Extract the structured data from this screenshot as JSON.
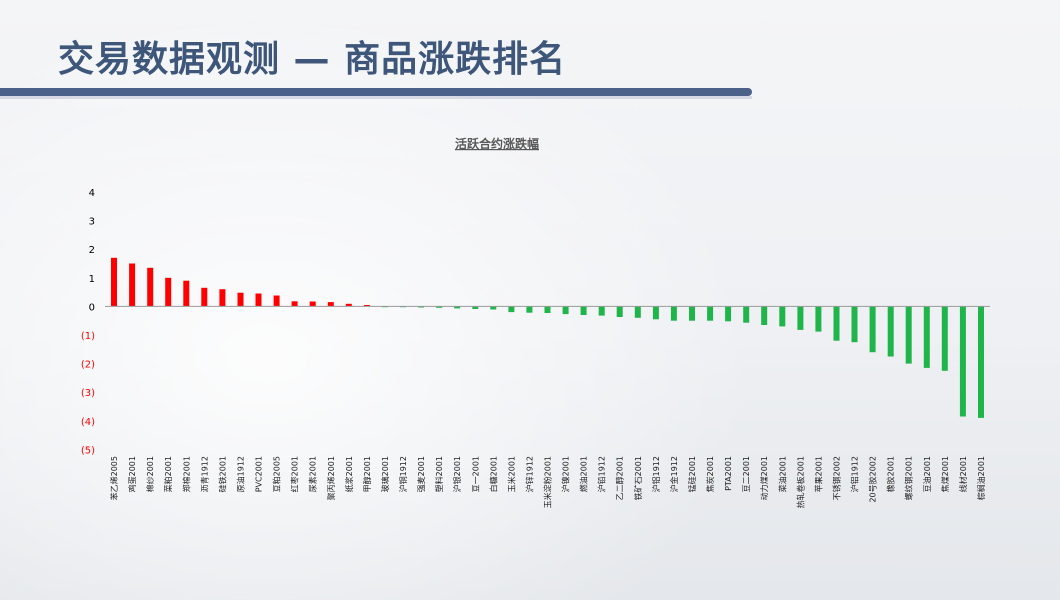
{
  "page": {
    "title": "交易数据观测 — 商品涨跌排名"
  },
  "colors": {
    "title": "#3e5679",
    "title_bar": "#4b6189",
    "positive_bar": "#ff0000",
    "negative_bar": "#1fb54b",
    "negative_tick_label": "#ff0000",
    "positive_tick_label": "#000000"
  },
  "chart_data": {
    "type": "bar",
    "title": "活跃合约涨跌幅",
    "xlabel": "",
    "ylabel": "",
    "ylim": [
      -5,
      4
    ],
    "yticks": [
      {
        "value": 4,
        "label": "4"
      },
      {
        "value": 3,
        "label": "3"
      },
      {
        "value": 2,
        "label": "2"
      },
      {
        "value": 1,
        "label": "1"
      },
      {
        "value": 0,
        "label": "0"
      },
      {
        "value": -1,
        "label": "(1)"
      },
      {
        "value": -2,
        "label": "(2)"
      },
      {
        "value": -3,
        "label": "(3)"
      },
      {
        "value": -4,
        "label": "(4)"
      },
      {
        "value": -5,
        "label": "(5)"
      }
    ],
    "grid": false,
    "legend": "none",
    "categories": [
      "苯乙烯2005",
      "鸡蛋2001",
      "棉纱2001",
      "菜粕2001",
      "郑棉2001",
      "沥青1912",
      "硅铁2001",
      "原油1912",
      "PVC2001",
      "豆粕2005",
      "红枣2001",
      "尿素2001",
      "聚丙烯2001",
      "纸浆2001",
      "甲醇2001",
      "玻璃2001",
      "沪铜1912",
      "强麦2001",
      "塑料2001",
      "沪银2001",
      "豆一2001",
      "白糖2001",
      "玉米2001",
      "沪锌1912",
      "玉米淀粉2001",
      "沪镍2001",
      "燃油2001",
      "沪铅1912",
      "乙二醇2001",
      "铁矿石2001",
      "沪铝1912",
      "沪金1912",
      "锰硅2001",
      "焦炭2001",
      "PTA2001",
      "豆二2001",
      "动力煤2001",
      "菜油2001",
      "热轧卷板2001",
      "苹果2001",
      "不锈钢2002",
      "沪铝1912",
      "20号胶2002",
      "橡胶2001",
      "螺纹钢2001",
      "豆油2001",
      "焦煤2001",
      "线材2001",
      "棕榈油2001"
    ],
    "values": [
      1.7,
      1.5,
      1.35,
      1.0,
      0.9,
      0.65,
      0.6,
      0.48,
      0.45,
      0.38,
      0.18,
      0.17,
      0.15,
      0.09,
      0.05,
      -0.01,
      -0.02,
      -0.04,
      -0.05,
      -0.07,
      -0.09,
      -0.11,
      -0.2,
      -0.22,
      -0.23,
      -0.27,
      -0.3,
      -0.32,
      -0.37,
      -0.4,
      -0.45,
      -0.5,
      -0.5,
      -0.5,
      -0.52,
      -0.57,
      -0.65,
      -0.7,
      -0.82,
      -0.88,
      -1.2,
      -1.25,
      -1.6,
      -1.75,
      -2.0,
      -2.15,
      -2.25,
      -3.85,
      -3.9
    ]
  }
}
